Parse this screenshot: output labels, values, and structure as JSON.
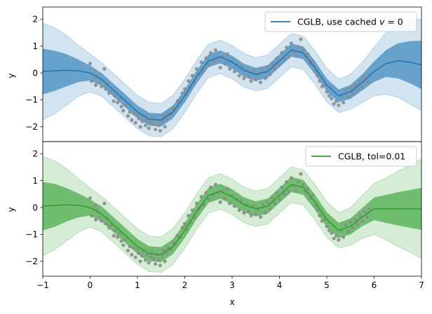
{
  "chart_data": {
    "type": "line",
    "xlabel": "x",
    "xlim": [
      -1,
      7
    ],
    "x_ticks": [
      -1,
      0,
      1,
      2,
      3,
      4,
      5,
      6,
      7
    ],
    "data_points": {
      "x": [
        0.0,
        0.03,
        0.1,
        0.12,
        0.15,
        0.2,
        0.24,
        0.3,
        0.33,
        0.36,
        0.4,
        0.45,
        0.5,
        0.52,
        0.58,
        0.62,
        0.66,
        0.7,
        0.75,
        0.8,
        0.84,
        0.88,
        0.92,
        0.96,
        1.0,
        1.03,
        1.06,
        1.1,
        1.13,
        1.17,
        1.2,
        1.24,
        1.28,
        1.31,
        1.35,
        1.38,
        1.42,
        1.45,
        1.48,
        1.52,
        1.55,
        1.58,
        1.62,
        1.65,
        1.7,
        1.75,
        1.8,
        1.85,
        1.9,
        1.95,
        2.0,
        2.04,
        2.08,
        2.12,
        2.16,
        2.2,
        2.25,
        2.3,
        2.35,
        2.4,
        2.45,
        2.5,
        2.55,
        2.6,
        2.65,
        2.7,
        2.75,
        2.8,
        2.85,
        2.9,
        2.95,
        3.0,
        3.05,
        3.1,
        3.15,
        3.2,
        3.25,
        3.3,
        3.35,
        3.4,
        3.45,
        3.5,
        3.55,
        3.6,
        3.65,
        3.7,
        3.75,
        3.8,
        3.85,
        3.9,
        3.95,
        4.0,
        4.05,
        4.1,
        4.15,
        4.2,
        4.25,
        4.3,
        4.35,
        4.4,
        4.45,
        4.5,
        4.55,
        4.6,
        4.65,
        4.7,
        4.75,
        4.8,
        4.85,
        4.9,
        4.95,
        5.0,
        5.05,
        5.1,
        5.15,
        5.2,
        5.25,
        5.3,
        5.35,
        5.4,
        5.45,
        5.5,
        5.55,
        5.6,
        5.65,
        5.7,
        5.75,
        5.8,
        5.85,
        5.9
      ],
      "y": [
        0.35,
        -0.3,
        0.05,
        -0.45,
        -0.1,
        -0.35,
        -0.5,
        0.15,
        -0.6,
        -0.4,
        -0.75,
        -0.65,
        -1.05,
        -0.85,
        -1.1,
        -0.95,
        -1.25,
        -1.4,
        -1.2,
        -1.6,
        -1.45,
        -1.75,
        -1.5,
        -1.85,
        -1.55,
        -1.7,
        -2.0,
        -1.8,
        -1.6,
        -1.95,
        -1.75,
        -2.05,
        -1.85,
        -1.65,
        -1.9,
        -2.1,
        -1.75,
        -1.95,
        -2.15,
        -1.8,
        -1.6,
        -2.0,
        -1.7,
        -1.5,
        -1.55,
        -1.3,
        -1.35,
        -1.05,
        -1.1,
        -0.75,
        -0.6,
        -0.8,
        -0.3,
        -0.55,
        -0.1,
        -0.35,
        0.15,
        -0.05,
        0.4,
        0.1,
        0.55,
        0.3,
        0.75,
        0.45,
        0.85,
        0.55,
        0.2,
        0.6,
        0.35,
        0.7,
        0.15,
        0.45,
        0.05,
        0.3,
        -0.1,
        0.25,
        -0.2,
        0.1,
        -0.15,
        -0.3,
        0.05,
        -0.25,
        -0.05,
        -0.35,
        0.1,
        -0.2,
        0.2,
        -0.05,
        0.35,
        0.15,
        0.55,
        0.3,
        0.75,
        0.5,
        0.95,
        0.6,
        1.1,
        0.8,
        0.65,
        0.95,
        1.25,
        0.85,
        0.6,
        0.7,
        0.35,
        0.45,
        0.05,
        -0.1,
        -0.3,
        -0.5,
        -0.45,
        -0.7,
        -0.85,
        -0.95,
        -1.15,
        -1.05,
        -1.2,
        -0.85,
        -1.1,
        -0.65,
        -0.9,
        -0.55,
        -0.75,
        -0.45,
        -0.6,
        -0.3,
        -0.5,
        -0.15,
        -0.35,
        -0.05
      ]
    },
    "panels": [
      {
        "ylabel": "y",
        "ylim": [
          -2.55,
          2.45
        ],
        "y_ticks": [
          -2,
          -1,
          0,
          1,
          2
        ],
        "series_name": "CGLB, use cached v = 0",
        "legend_prefix": "CGLB, use cached ",
        "legend_var": "v",
        "legend_suffix": " = 0",
        "line_color": "#1f77b4",
        "inner_band_color": "#1f77b4",
        "outer_band_color": "#1f77b4",
        "mean": {
          "x": [
            -1.0,
            -0.75,
            -0.5,
            -0.25,
            0.0,
            0.25,
            0.5,
            0.75,
            1.0,
            1.25,
            1.5,
            1.75,
            2.0,
            2.25,
            2.5,
            2.75,
            3.0,
            3.25,
            3.5,
            3.75,
            4.0,
            4.25,
            4.5,
            4.75,
            5.0,
            5.25,
            5.5,
            5.75,
            6.0,
            6.25,
            6.5,
            6.75,
            7.0
          ],
          "y": [
            0.05,
            0.08,
            0.1,
            0.08,
            0.0,
            -0.25,
            -0.65,
            -1.05,
            -1.45,
            -1.72,
            -1.75,
            -1.45,
            -0.85,
            -0.15,
            0.45,
            0.6,
            0.4,
            0.1,
            -0.05,
            0.05,
            0.45,
            0.85,
            0.75,
            0.2,
            -0.45,
            -0.85,
            -0.7,
            -0.35,
            0.05,
            0.35,
            0.45,
            0.4,
            0.3
          ]
        },
        "band_inner_halfwidth": [
          0.85,
          0.75,
          0.6,
          0.42,
          0.28,
          0.24,
          0.24,
          0.24,
          0.24,
          0.24,
          0.24,
          0.24,
          0.24,
          0.24,
          0.24,
          0.24,
          0.24,
          0.24,
          0.24,
          0.24,
          0.24,
          0.24,
          0.24,
          0.24,
          0.24,
          0.24,
          0.26,
          0.3,
          0.38,
          0.5,
          0.65,
          0.78,
          0.9
        ],
        "band_outer_halfwidth": [
          1.8,
          1.6,
          1.3,
          0.95,
          0.7,
          0.62,
          0.62,
          0.62,
          0.62,
          0.62,
          0.62,
          0.62,
          0.62,
          0.62,
          0.62,
          0.62,
          0.62,
          0.62,
          0.62,
          0.62,
          0.62,
          0.62,
          0.62,
          0.62,
          0.62,
          0.62,
          0.65,
          0.75,
          0.9,
          1.15,
          1.35,
          1.55,
          1.7
        ]
      },
      {
        "ylabel": "y",
        "ylim": [
          -2.55,
          2.45
        ],
        "y_ticks": [
          -2,
          -1,
          0,
          1,
          2
        ],
        "series_name": "CGLB, tol=0.01",
        "legend_prefix": "CGLB, tol=0.01",
        "legend_var": "",
        "legend_suffix": "",
        "line_color": "#2ca02c",
        "inner_band_color": "#2ca02c",
        "outer_band_color": "#2ca02c",
        "mean": {
          "x": [
            -1.0,
            -0.75,
            -0.5,
            -0.25,
            0.0,
            0.25,
            0.5,
            0.75,
            1.0,
            1.25,
            1.5,
            1.75,
            2.0,
            2.25,
            2.5,
            2.75,
            3.0,
            3.25,
            3.5,
            3.75,
            4.0,
            4.25,
            4.5,
            4.75,
            5.0,
            5.25,
            5.5,
            5.75,
            6.0,
            6.25,
            6.5,
            6.75,
            7.0
          ],
          "y": [
            0.05,
            0.08,
            0.1,
            0.08,
            0.0,
            -0.25,
            -0.65,
            -1.05,
            -1.45,
            -1.72,
            -1.75,
            -1.45,
            -0.85,
            -0.15,
            0.45,
            0.6,
            0.4,
            0.1,
            -0.05,
            0.05,
            0.45,
            0.85,
            0.75,
            0.2,
            -0.45,
            -0.85,
            -0.7,
            -0.35,
            -0.05,
            -0.05,
            -0.05,
            -0.05,
            -0.05
          ]
        },
        "band_inner_halfwidth": [
          0.9,
          0.8,
          0.62,
          0.45,
          0.3,
          0.28,
          0.28,
          0.28,
          0.28,
          0.28,
          0.28,
          0.28,
          0.28,
          0.28,
          0.28,
          0.28,
          0.28,
          0.28,
          0.28,
          0.28,
          0.28,
          0.28,
          0.28,
          0.28,
          0.28,
          0.28,
          0.3,
          0.34,
          0.42,
          0.52,
          0.62,
          0.7,
          0.78
        ],
        "band_outer_halfwidth": [
          1.85,
          1.65,
          1.35,
          1.0,
          0.72,
          0.66,
          0.66,
          0.66,
          0.66,
          0.66,
          0.66,
          0.66,
          0.66,
          0.66,
          0.66,
          0.66,
          0.66,
          0.66,
          0.66,
          0.66,
          0.66,
          0.66,
          0.66,
          0.66,
          0.66,
          0.66,
          0.7,
          0.8,
          0.95,
          1.15,
          1.4,
          1.6,
          1.85
        ]
      }
    ]
  }
}
